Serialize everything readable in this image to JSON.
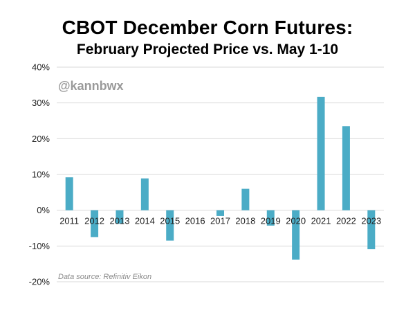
{
  "title": "CBOT December Corn Futures:",
  "subtitle": "February Projected Price vs. May 1-10",
  "watermark": "@kannbwx",
  "source": "Data source: Refinitiv Eikon",
  "chart_data": {
    "type": "bar",
    "title": "CBOT December Corn Futures: February Projected Price vs. May 1-10",
    "xlabel": "",
    "ylabel": "",
    "categories": [
      "2011",
      "2012",
      "2013",
      "2014",
      "2015",
      "2016",
      "2017",
      "2018",
      "2019",
      "2020",
      "2021",
      "2022",
      "2023"
    ],
    "values": [
      9.2,
      -7.5,
      -3.8,
      8.9,
      -8.5,
      0,
      -1.6,
      6.0,
      -4.3,
      -13.8,
      31.7,
      23.5,
      -10.9
    ],
    "ylim": [
      -20,
      40
    ],
    "yticks": [
      -20,
      -10,
      0,
      10,
      20,
      30,
      40
    ],
    "ytick_labels": [
      "-20%",
      "-10%",
      "0%",
      "10%",
      "20%",
      "30%",
      "40%"
    ],
    "grid": true,
    "bar_color": "#4bacc6"
  }
}
